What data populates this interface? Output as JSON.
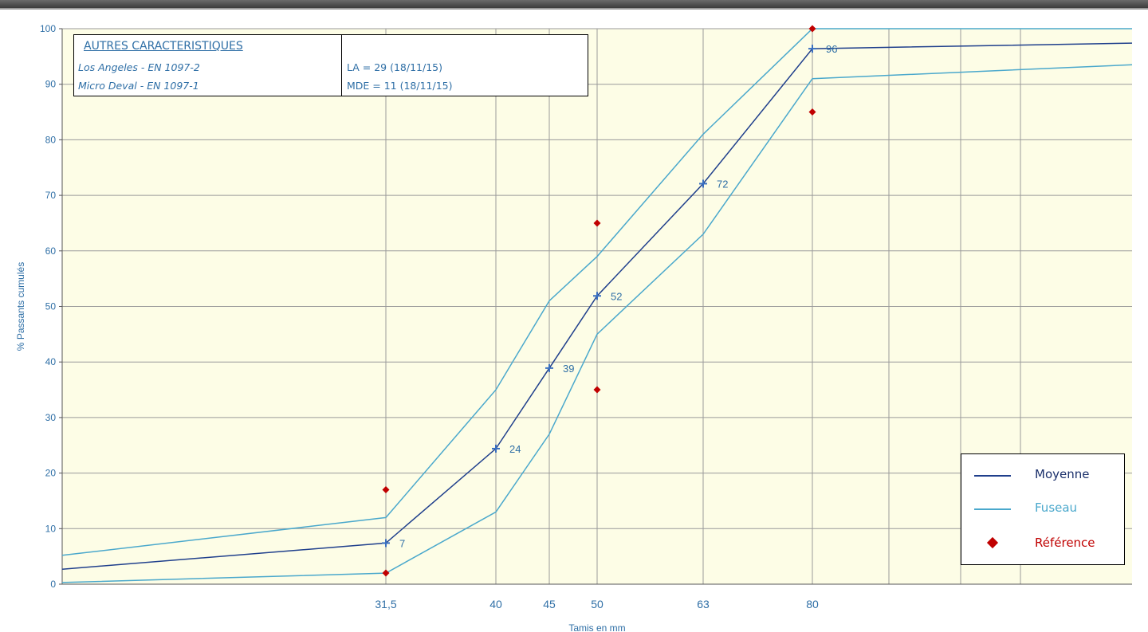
{
  "chart_data": {
    "type": "line",
    "xlabel": "Tamis en mm",
    "ylabel": "% Passants cumulés",
    "ylim": [
      0,
      100
    ],
    "yticks": [
      0,
      10,
      20,
      30,
      40,
      50,
      60,
      70,
      80,
      90,
      100
    ],
    "x_tick_labels": [
      "31,5",
      "40",
      "45",
      "50",
      "63",
      "80"
    ],
    "grid": true,
    "legend_position": "bottom-right",
    "series": [
      {
        "name": "Moyenne",
        "color": "#1f3f8c",
        "points": [
          {
            "x": 20,
            "y": 2.7
          },
          {
            "x": 31.5,
            "y": 7.4
          },
          {
            "x": 40,
            "y": 24.4
          },
          {
            "x": 45,
            "y": 38.9
          },
          {
            "x": 50,
            "y": 51.9
          },
          {
            "x": 63,
            "y": 72.1
          },
          {
            "x": 80,
            "y": 96.4
          },
          {
            "x": 125,
            "y": 97.4
          }
        ],
        "labelled_points": [
          {
            "x": 31.5,
            "y": 7.4,
            "label": "7"
          },
          {
            "x": 40,
            "y": 24.4,
            "label": "24"
          },
          {
            "x": 45,
            "y": 38.9,
            "label": "39"
          },
          {
            "x": 50,
            "y": 51.9,
            "label": "52"
          },
          {
            "x": 63,
            "y": 72.1,
            "label": "72"
          },
          {
            "x": 80,
            "y": 96.4,
            "label": "96"
          }
        ]
      },
      {
        "name": "Fuseau",
        "color": "#4aa8cc",
        "points": [
          {
            "x": 20,
            "y": 5.2
          },
          {
            "x": 31.5,
            "y": 12
          },
          {
            "x": 40,
            "y": 35
          },
          {
            "x": 45,
            "y": 51
          },
          {
            "x": 50,
            "y": 59
          },
          {
            "x": 63,
            "y": 81
          },
          {
            "x": 80,
            "y": 100
          },
          {
            "x": 125,
            "y": 100
          }
        ]
      },
      {
        "name": "",
        "color": "#4aa8cc",
        "points": [
          {
            "x": 20,
            "y": 0.3
          },
          {
            "x": 31.5,
            "y": 2
          },
          {
            "x": 40,
            "y": 13
          },
          {
            "x": 45,
            "y": 27
          },
          {
            "x": 50,
            "y": 45
          },
          {
            "x": 63,
            "y": 63
          },
          {
            "x": 80,
            "y": 91
          },
          {
            "x": 125,
            "y": 93.5
          }
        ]
      }
    ],
    "reference": {
      "name": "Référence",
      "color": "#c00000",
      "points": [
        {
          "x": 31.5,
          "y": 17
        },
        {
          "x": 31.5,
          "y": 2
        },
        {
          "x": 50,
          "y": 65
        },
        {
          "x": 50,
          "y": 35
        },
        {
          "x": 80,
          "y": 100
        },
        {
          "x": 80,
          "y": 85
        }
      ]
    }
  },
  "info_table": {
    "title": "AUTRES CARACTERISTIQUES",
    "rows": [
      {
        "label": "Los Angeles - EN 1097-2",
        "value": "LA = 29 (18/11/15)"
      },
      {
        "label": "Micro Deval - EN 1097-1",
        "value": "MDE = 11 (18/11/15)"
      }
    ]
  },
  "legend": {
    "items": [
      {
        "label": "Moyenne",
        "color": "#1f3f8c",
        "kind": "line"
      },
      {
        "label": "Fuseau",
        "color": "#4aa8cc",
        "kind": "line"
      },
      {
        "label": "Référence",
        "color": "#c00000",
        "kind": "diamond"
      }
    ]
  },
  "colors": {
    "plot_background": "#fdfde6",
    "grid": "#9a9a9a",
    "axis_text": "#2f6fa6"
  }
}
